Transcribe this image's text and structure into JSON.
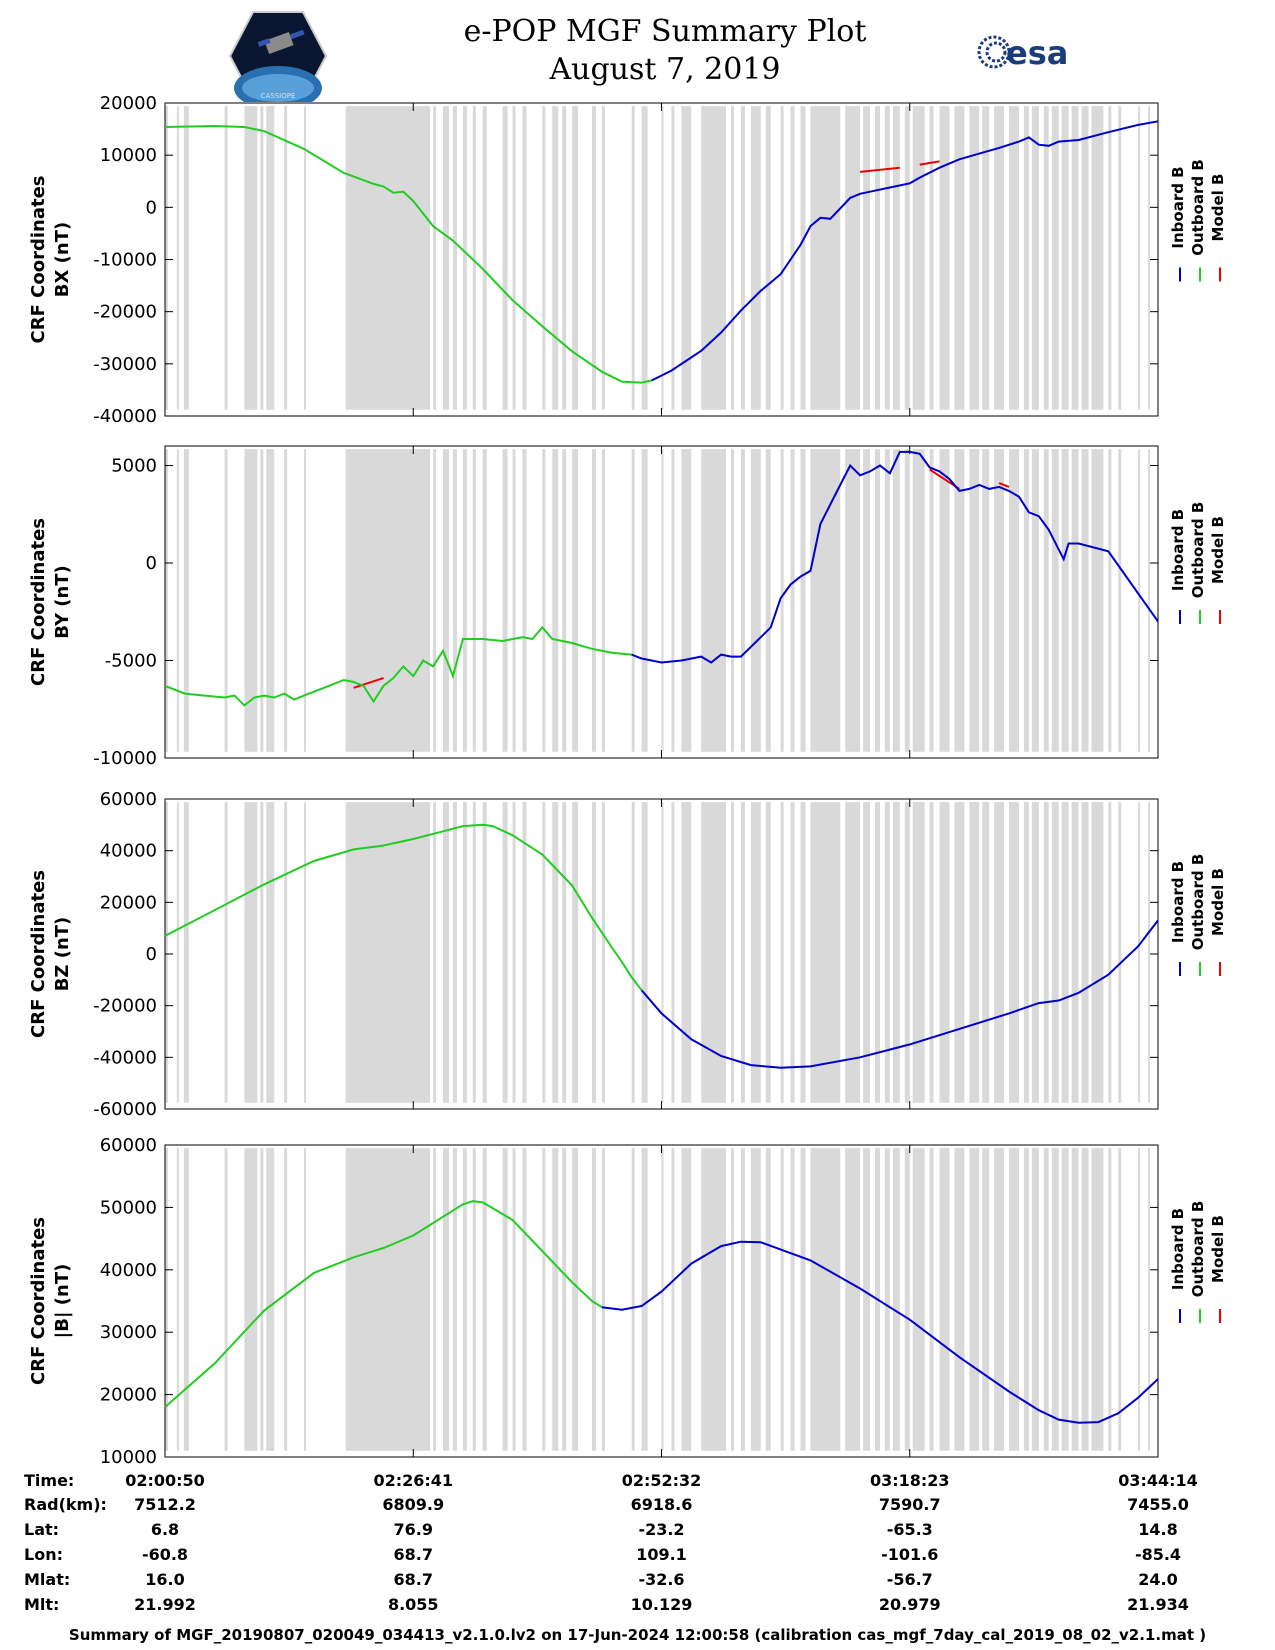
{
  "title_line1": "e-POP MGF Summary Plot",
  "title_line2": "August 7, 2019",
  "logo_right_text": "esa",
  "logo_left_text": "CASSIOPE",
  "colors": {
    "inboard": "#0000cc",
    "outboard": "#22cc22",
    "model": "#ee0000",
    "gap": "#d9d9d9"
  },
  "legend": [
    "Inboard B",
    "Outboard B",
    "Model B"
  ],
  "chart_data": [
    {
      "type": "line",
      "ylabel_line1": "CRF Coordinates",
      "ylabel_line2": "BX (nT)",
      "ylim": [
        -40000,
        20000
      ],
      "yticks": [
        20000,
        10000,
        0,
        -10000,
        -20000,
        -30000,
        -40000
      ],
      "xlim": [
        0,
        100
      ],
      "outboard": [
        [
          0,
          15400
        ],
        [
          5,
          15600
        ],
        [
          8,
          15400
        ],
        [
          10,
          14600
        ],
        [
          14,
          11200
        ],
        [
          18,
          6600
        ],
        [
          20,
          5200
        ],
        [
          21,
          4500
        ],
        [
          22,
          4000
        ],
        [
          23,
          2800
        ],
        [
          24,
          3000
        ],
        [
          25,
          1200
        ],
        [
          26,
          -1200
        ],
        [
          27,
          -3600
        ],
        [
          29,
          -6400
        ],
        [
          32,
          -11800
        ],
        [
          35,
          -17800
        ],
        [
          38,
          -22800
        ],
        [
          41,
          -27600
        ],
        [
          44,
          -31500
        ],
        [
          46,
          -33400
        ],
        [
          48,
          -33600
        ],
        [
          49,
          -33200
        ]
      ],
      "inboard": [
        [
          49,
          -33200
        ],
        [
          51,
          -31300
        ],
        [
          54,
          -27500
        ],
        [
          56,
          -24000
        ],
        [
          58,
          -19800
        ],
        [
          60,
          -16000
        ],
        [
          62,
          -12800
        ],
        [
          63,
          -10000
        ],
        [
          64,
          -7200
        ],
        [
          65,
          -3600
        ],
        [
          66,
          -2000
        ],
        [
          67,
          -2200
        ],
        [
          68,
          -200
        ],
        [
          69,
          1800
        ],
        [
          70,
          2600
        ],
        [
          71,
          3000
        ],
        [
          73,
          3800
        ],
        [
          75,
          4600
        ],
        [
          76,
          5700
        ],
        [
          78,
          7600
        ],
        [
          80,
          9200
        ],
        [
          82,
          10300
        ],
        [
          84,
          11400
        ],
        [
          86,
          12600
        ],
        [
          87,
          13400
        ],
        [
          88,
          12000
        ],
        [
          89,
          11800
        ],
        [
          90,
          12600
        ],
        [
          92,
          12900
        ],
        [
          95,
          14400
        ],
        [
          98,
          15800
        ],
        [
          100,
          16500
        ]
      ],
      "model": [
        [
          70,
          6800
        ],
        [
          74,
          7600
        ],
        [
          76,
          8200
        ],
        [
          78,
          8800
        ]
      ]
    },
    {
      "type": "line",
      "ylabel_line1": "CRF Coordinates",
      "ylabel_line2": "BY (nT)",
      "ylim": [
        -10000,
        6000
      ],
      "yticks": [
        5000,
        0,
        -5000,
        -10000
      ],
      "xlim": [
        0,
        100
      ],
      "outboard": [
        [
          0,
          -6300
        ],
        [
          2,
          -6700
        ],
        [
          4,
          -6800
        ],
        [
          6,
          -6900
        ],
        [
          7,
          -6800
        ],
        [
          8,
          -7300
        ],
        [
          9,
          -6900
        ],
        [
          10,
          -6800
        ],
        [
          11,
          -6900
        ],
        [
          12,
          -6700
        ],
        [
          13,
          -7000
        ],
        [
          14,
          -6800
        ],
        [
          16,
          -6400
        ],
        [
          18,
          -6000
        ],
        [
          19,
          -6100
        ],
        [
          20,
          -6300
        ],
        [
          21,
          -7100
        ],
        [
          22,
          -6300
        ],
        [
          23,
          -5900
        ],
        [
          24,
          -5300
        ],
        [
          25,
          -5800
        ],
        [
          26,
          -5000
        ],
        [
          27,
          -5300
        ],
        [
          28,
          -4500
        ],
        [
          29,
          -5800
        ],
        [
          30,
          -3900
        ],
        [
          32,
          -3900
        ],
        [
          34,
          -4000
        ],
        [
          36,
          -3800
        ],
        [
          37,
          -3900
        ],
        [
          38,
          -3300
        ],
        [
          39,
          -3900
        ],
        [
          41,
          -4100
        ],
        [
          43,
          -4400
        ],
        [
          45,
          -4600
        ],
        [
          47,
          -4700
        ]
      ],
      "inboard": [
        [
          47,
          -4700
        ],
        [
          48,
          -4900
        ],
        [
          50,
          -5100
        ],
        [
          52,
          -5000
        ],
        [
          54,
          -4800
        ],
        [
          55,
          -5100
        ],
        [
          56,
          -4700
        ],
        [
          57,
          -4800
        ],
        [
          58,
          -4800
        ],
        [
          59,
          -4300
        ],
        [
          61,
          -3300
        ],
        [
          62,
          -1800
        ],
        [
          63,
          -1100
        ],
        [
          64,
          -700
        ],
        [
          65,
          -400
        ],
        [
          66,
          2000
        ],
        [
          67,
          3000
        ],
        [
          68,
          4000
        ],
        [
          69,
          5000
        ],
        [
          70,
          4500
        ],
        [
          71,
          4700
        ],
        [
          72,
          5000
        ],
        [
          73,
          4600
        ],
        [
          74,
          5700
        ],
        [
          75,
          5700
        ],
        [
          76,
          5600
        ],
        [
          77,
          4900
        ],
        [
          78,
          4700
        ],
        [
          79,
          4300
        ],
        [
          80,
          3700
        ],
        [
          81,
          3800
        ],
        [
          82,
          4000
        ],
        [
          83,
          3800
        ],
        [
          84,
          3900
        ],
        [
          85,
          3700
        ],
        [
          86,
          3400
        ],
        [
          87,
          2600
        ],
        [
          88,
          2400
        ],
        [
          89,
          1700
        ],
        [
          90,
          700
        ],
        [
          90.5,
          200
        ],
        [
          91,
          1000
        ],
        [
          92,
          1000
        ],
        [
          95,
          600
        ],
        [
          100,
          -3000
        ]
      ],
      "model": [
        [
          19,
          -6400
        ],
        [
          22,
          -5900
        ],
        [
          77,
          4800
        ],
        [
          80,
          3800
        ],
        [
          84,
          4100
        ],
        [
          85,
          3900
        ]
      ]
    },
    {
      "type": "line",
      "ylabel_line1": "CRF Coordinates",
      "ylabel_line2": "BZ (nT)",
      "ylim": [
        -60000,
        60000
      ],
      "yticks": [
        60000,
        40000,
        20000,
        0,
        -20000,
        -40000,
        -60000
      ],
      "xlim": [
        0,
        100
      ],
      "outboard": [
        [
          0,
          7000
        ],
        [
          5,
          17000
        ],
        [
          10,
          27000
        ],
        [
          15,
          36000
        ],
        [
          19,
          40500
        ],
        [
          22,
          42000
        ],
        [
          25,
          44500
        ],
        [
          28,
          47500
        ],
        [
          30,
          49500
        ],
        [
          32,
          50000
        ],
        [
          33,
          49500
        ],
        [
          35,
          46000
        ],
        [
          38,
          38500
        ],
        [
          41,
          26500
        ],
        [
          43,
          14000
        ],
        [
          45,
          2500
        ],
        [
          46,
          -3000
        ],
        [
          47,
          -9000
        ],
        [
          48,
          -14000
        ]
      ],
      "inboard": [
        [
          48,
          -14000
        ],
        [
          50,
          -23000
        ],
        [
          53,
          -33000
        ],
        [
          56,
          -39500
        ],
        [
          59,
          -43000
        ],
        [
          62,
          -44000
        ],
        [
          65,
          -43500
        ],
        [
          70,
          -40000
        ],
        [
          75,
          -35000
        ],
        [
          80,
          -29000
        ],
        [
          85,
          -23000
        ],
        [
          88,
          -19000
        ],
        [
          90,
          -18000
        ],
        [
          92,
          -15000
        ],
        [
          95,
          -8000
        ],
        [
          98,
          3000
        ],
        [
          100,
          13000
        ]
      ],
      "model": []
    },
    {
      "type": "line",
      "ylabel_line1": "CRF Coordinates",
      "ylabel_line2": "|B| (nT)",
      "ylim": [
        10000,
        60000
      ],
      "yticks": [
        60000,
        50000,
        40000,
        30000,
        20000,
        10000
      ],
      "xlim": [
        0,
        100
      ],
      "outboard": [
        [
          0,
          18000
        ],
        [
          5,
          25000
        ],
        [
          10,
          33500
        ],
        [
          15,
          39500
        ],
        [
          19,
          42000
        ],
        [
          22,
          43500
        ],
        [
          25,
          45500
        ],
        [
          28,
          48500
        ],
        [
          30,
          50500
        ],
        [
          31,
          51000
        ],
        [
          32,
          50800
        ],
        [
          35,
          48000
        ],
        [
          38,
          43000
        ],
        [
          41,
          38000
        ],
        [
          43,
          35000
        ],
        [
          44,
          34000
        ]
      ],
      "inboard": [
        [
          44,
          34000
        ],
        [
          46,
          33600
        ],
        [
          48,
          34200
        ],
        [
          50,
          36500
        ],
        [
          53,
          41000
        ],
        [
          56,
          43800
        ],
        [
          58,
          44500
        ],
        [
          60,
          44400
        ],
        [
          65,
          41500
        ],
        [
          70,
          37000
        ],
        [
          75,
          32000
        ],
        [
          80,
          26000
        ],
        [
          85,
          20500
        ],
        [
          88,
          17500
        ],
        [
          90,
          16000
        ],
        [
          92,
          15500
        ],
        [
          94,
          15600
        ],
        [
          96,
          17000
        ],
        [
          98,
          19500
        ],
        [
          100,
          22500
        ]
      ],
      "model": []
    }
  ],
  "x_axis": {
    "row_labels": [
      "Time:",
      "Rad(km):",
      "Lat:",
      "Lon:",
      "Mlat:",
      "Mlt:"
    ],
    "columns": [
      [
        "02:00:50",
        "7512.2",
        "6.8",
        "-60.8",
        "16.0",
        "21.992"
      ],
      [
        "02:26:41",
        "6809.9",
        "76.9",
        "68.7",
        "68.7",
        "8.055"
      ],
      [
        "02:52:32",
        "6918.6",
        "-23.2",
        "109.1",
        "-32.6",
        "10.129"
      ],
      [
        "03:18:23",
        "7590.7",
        "-65.3",
        "-101.6",
        "-56.7",
        "20.979"
      ],
      [
        "03:44:14",
        "7455.0",
        "14.8",
        "-85.4",
        "24.0",
        "21.934"
      ]
    ],
    "tick_positions": [
      0,
      25,
      50,
      75,
      100
    ]
  },
  "data_gaps": [
    [
      0,
      0.3
    ],
    [
      1.2,
      1.4
    ],
    [
      1.9,
      2.4
    ],
    [
      6,
      6.3
    ],
    [
      8,
      9.3
    ],
    [
      9.6,
      9.9
    ],
    [
      10.2,
      11
    ],
    [
      12,
      12.3
    ],
    [
      14,
      14.2
    ],
    [
      18.2,
      26.7
    ],
    [
      27,
      27.3
    ],
    [
      28,
      28.6
    ],
    [
      29,
      29.4
    ],
    [
      30,
      30.4
    ],
    [
      31,
      31.3
    ],
    [
      32,
      32.4
    ],
    [
      34,
      34.5
    ],
    [
      35,
      35.3
    ],
    [
      36,
      36.4
    ],
    [
      38,
      38.3
    ],
    [
      39,
      39.6
    ],
    [
      40,
      40.4
    ],
    [
      41,
      41.6
    ],
    [
      43,
      43.4
    ],
    [
      44,
      44.3
    ],
    [
      47,
      47.3
    ],
    [
      48,
      48.6
    ],
    [
      50,
      50.2
    ],
    [
      51,
      51.3
    ],
    [
      52,
      53
    ],
    [
      54,
      56.5
    ],
    [
      57,
      57.3
    ],
    [
      58,
      58.4
    ],
    [
      59,
      60
    ],
    [
      60.5,
      61
    ],
    [
      62,
      62.3
    ],
    [
      63,
      63.4
    ],
    [
      64,
      64.5
    ],
    [
      65,
      68
    ],
    [
      68.5,
      70
    ],
    [
      70.3,
      71
    ],
    [
      71.5,
      72
    ],
    [
      72.5,
      73
    ],
    [
      73.3,
      74
    ],
    [
      74.5,
      75
    ],
    [
      75.3,
      76.5
    ],
    [
      77,
      77.4
    ],
    [
      78,
      79
    ],
    [
      79.5,
      80.5
    ],
    [
      81,
      82
    ],
    [
      82.3,
      83
    ],
    [
      83.5,
      84.5
    ],
    [
      85,
      86
    ],
    [
      86.5,
      87
    ],
    [
      87.3,
      88
    ],
    [
      88.5,
      89
    ],
    [
      89.3,
      90
    ],
    [
      90.3,
      91
    ],
    [
      91.3,
      92
    ],
    [
      92.3,
      93
    ],
    [
      93.3,
      94.5
    ],
    [
      95,
      95.3
    ],
    [
      96,
      96.3
    ],
    [
      98,
      98.2
    ],
    [
      99,
      99.2
    ]
  ],
  "footer": "Summary of MGF_20190807_020049_034413_v2.1.0.lv2 on 17-Jun-2024 12:00:58 (calibration cas_mgf_7day_cal_2019_08_02_v2.1.mat )"
}
